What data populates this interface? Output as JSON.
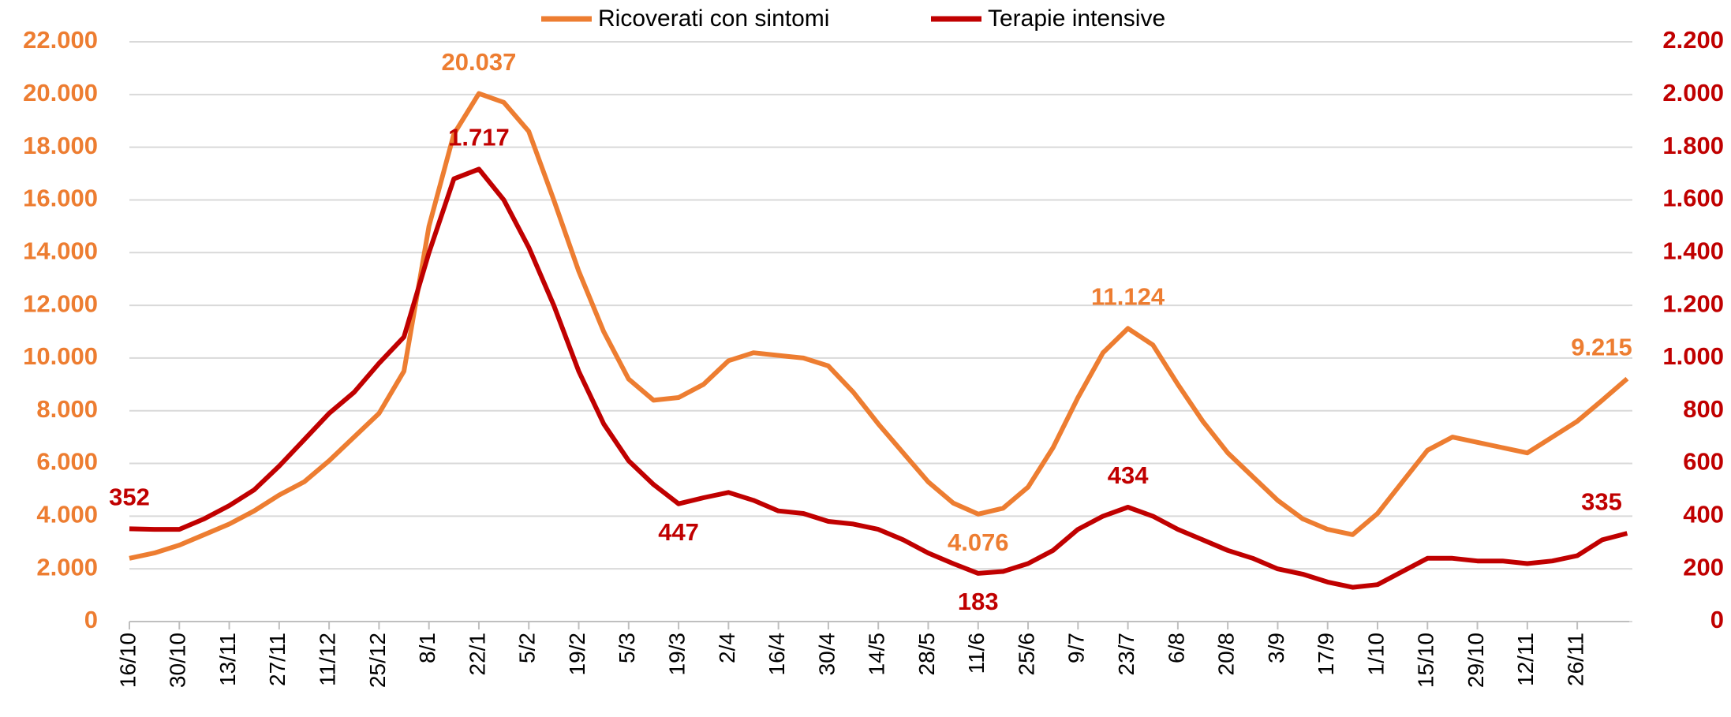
{
  "chart_data": {
    "type": "line",
    "categories": [
      "16/10",
      null,
      "30/10",
      null,
      "13/11",
      null,
      "27/11",
      null,
      "11/12",
      null,
      "25/12",
      null,
      "8/1",
      null,
      "22/1",
      null,
      "5/2",
      null,
      "19/2",
      null,
      "5/3",
      null,
      "19/3",
      null,
      "2/4",
      null,
      "16/4",
      null,
      "30/4",
      null,
      "14/5",
      null,
      "28/5",
      null,
      "11/6",
      null,
      "25/6",
      null,
      "9/7",
      null,
      "23/7",
      null,
      "6/8",
      null,
      "20/8",
      null,
      "3/9",
      null,
      "17/9",
      null,
      "1/10",
      null,
      "15/10",
      null,
      "29/10",
      null,
      "12/11",
      null,
      "26/11",
      null,
      null
    ],
    "series": [
      {
        "name": "Ricoverati con sintomi",
        "color": "#ED7D31",
        "axis": "y",
        "values": [
          2400,
          2600,
          2900,
          3300,
          3700,
          4200,
          4800,
          5300,
          6100,
          7000,
          7900,
          9500,
          15000,
          18500,
          20037,
          19700,
          18600,
          16000,
          13300,
          11000,
          9200,
          8400,
          8500,
          9000,
          9900,
          10200,
          10100,
          10000,
          9700,
          8700,
          7500,
          6400,
          5300,
          4500,
          4076,
          4300,
          5100,
          6600,
          8500,
          10200,
          11124,
          10500,
          9000,
          7600,
          6400,
          5500,
          4600,
          3900,
          3500,
          3300,
          4100,
          5300,
          6500,
          7000,
          6800,
          6600,
          6400,
          7000,
          7600,
          8400,
          9215
        ],
        "value_labels": [
          null,
          null,
          null,
          null,
          null,
          null,
          null,
          null,
          null,
          null,
          null,
          null,
          null,
          null,
          "20.037",
          null,
          null,
          null,
          null,
          null,
          null,
          null,
          null,
          null,
          null,
          null,
          null,
          null,
          null,
          null,
          null,
          null,
          null,
          null,
          "4.076",
          null,
          null,
          null,
          null,
          null,
          "11.124",
          null,
          null,
          null,
          null,
          null,
          null,
          null,
          null,
          null,
          null,
          null,
          null,
          null,
          null,
          null,
          null,
          null,
          null,
          null,
          "9.215"
        ]
      },
      {
        "name": "Terapie intensive",
        "color": "#C00000",
        "axis": "y2",
        "values": [
          352,
          350,
          350,
          390,
          440,
          500,
          590,
          690,
          790,
          870,
          980,
          1080,
          1400,
          1680,
          1717,
          1600,
          1420,
          1200,
          950,
          750,
          610,
          520,
          447,
          470,
          490,
          460,
          420,
          410,
          380,
          370,
          350,
          310,
          260,
          220,
          183,
          190,
          220,
          270,
          350,
          400,
          434,
          400,
          350,
          310,
          270,
          240,
          200,
          180,
          150,
          130,
          140,
          190,
          240,
          240,
          230,
          230,
          220,
          230,
          250,
          310,
          335
        ],
        "value_labels": [
          "352",
          null,
          null,
          null,
          null,
          null,
          null,
          null,
          null,
          null,
          null,
          null,
          null,
          null,
          "1.717",
          null,
          null,
          null,
          null,
          null,
          null,
          null,
          "447",
          null,
          null,
          null,
          null,
          null,
          null,
          null,
          null,
          null,
          null,
          null,
          "183",
          null,
          null,
          null,
          null,
          null,
          "434",
          null,
          null,
          null,
          null,
          null,
          null,
          null,
          null,
          null,
          null,
          null,
          null,
          null,
          null,
          null,
          null,
          null,
          null,
          null,
          "335"
        ]
      }
    ],
    "ylim": [
      0,
      22000
    ],
    "yticks": [
      0,
      {
        "value": 2000,
        "label": "2.000"
      },
      {
        "value": 4000,
        "label": "4.000"
      },
      {
        "value": 6000,
        "label": "6.000"
      },
      {
        "value": 8000,
        "label": "8.000"
      },
      {
        "value": 10000,
        "label": "10.000"
      },
      {
        "value": 12000,
        "label": "12.000"
      },
      {
        "value": 14000,
        "label": "14.000"
      },
      {
        "value": 16000,
        "label": "16.000"
      },
      {
        "value": 18000,
        "label": "18.000"
      },
      {
        "value": 20000,
        "label": "20.000"
      },
      {
        "value": 22000,
        "label": "22.000"
      }
    ],
    "y2lim": [
      0,
      2200
    ],
    "y2ticks": [
      0,
      200,
      400,
      600,
      800,
      {
        "value": 1000,
        "label": "1.000"
      },
      {
        "value": 1200,
        "label": "1.200"
      },
      {
        "value": 1400,
        "label": "1.400"
      },
      {
        "value": 1600,
        "label": "1.600"
      },
      {
        "value": 1800,
        "label": "1.800"
      },
      {
        "value": 2000,
        "label": "2.000"
      },
      {
        "value": 2200,
        "label": "2.200"
      }
    ],
    "grid": true,
    "legend": "top"
  }
}
